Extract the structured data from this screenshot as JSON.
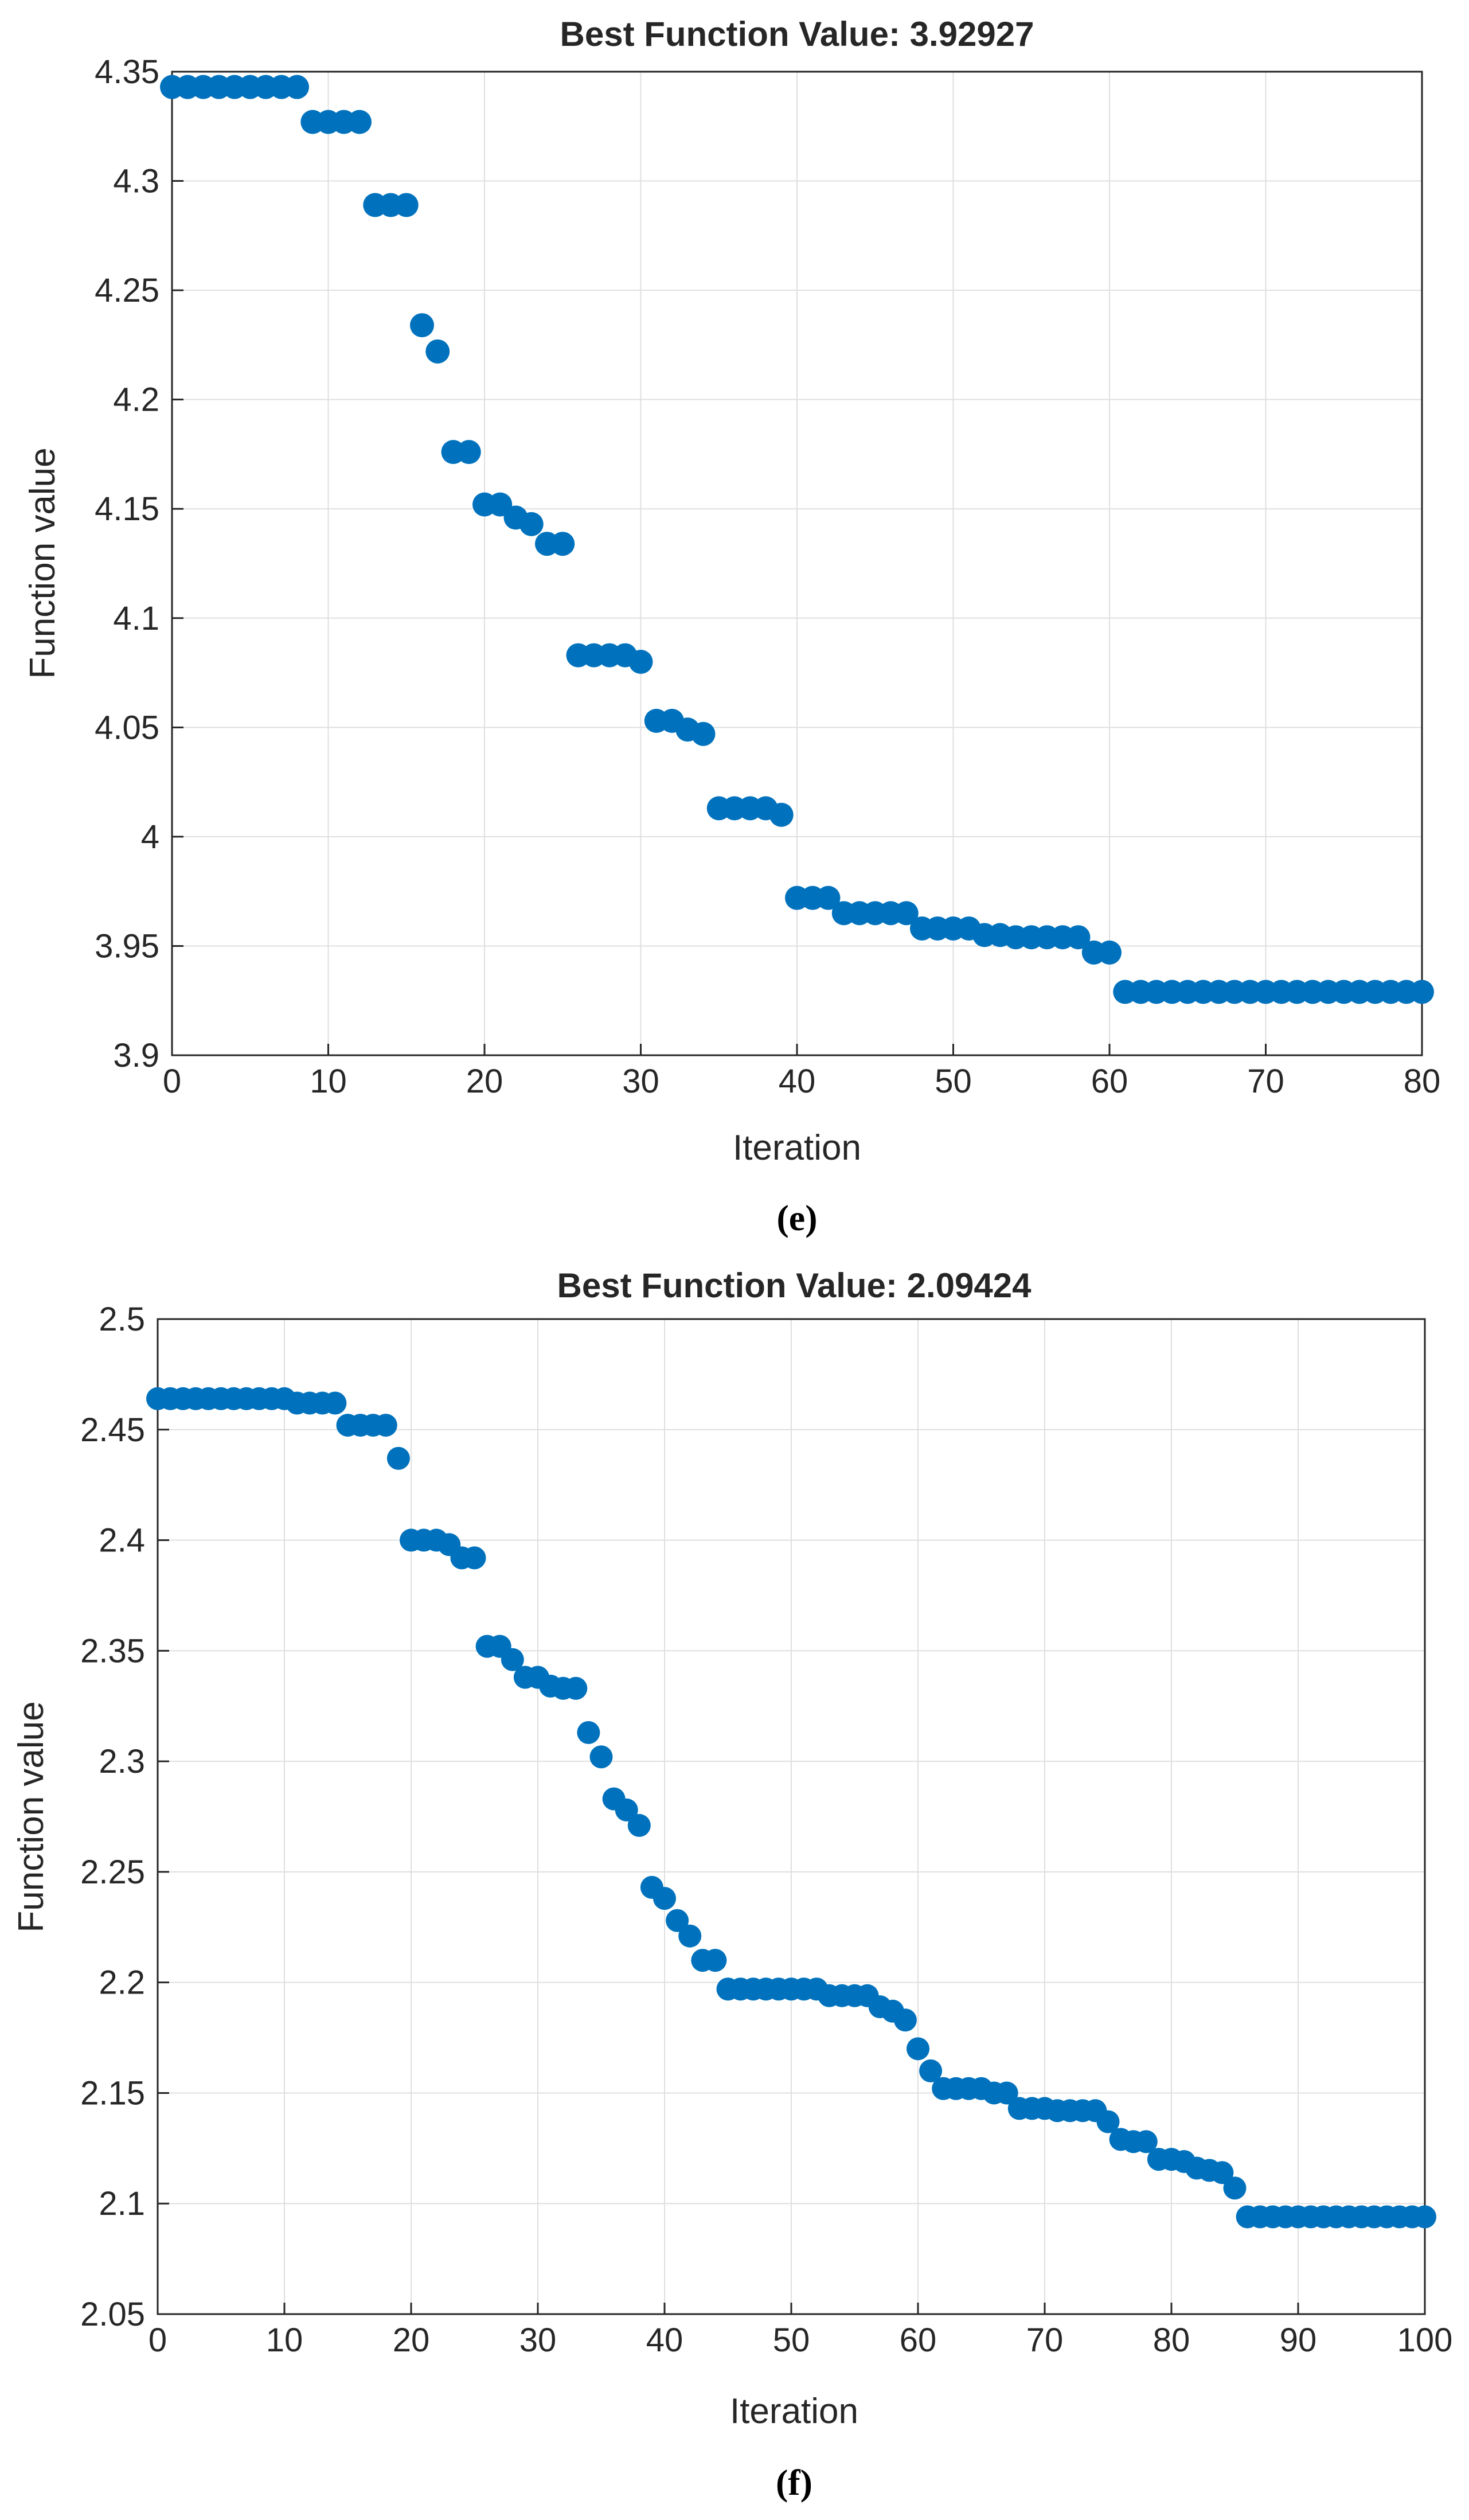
{
  "figure": {
    "panels": [
      {
        "caption": "(e)"
      },
      {
        "caption": "(f)"
      }
    ]
  },
  "colors": {
    "marker": "#0072BD",
    "grid": "#DFDFDF",
    "axis": "#262626"
  },
  "chart_data": [
    {
      "type": "scatter",
      "title": "Best Function Value: 3.92927",
      "xlabel": "Iteration",
      "ylabel": "Function value",
      "xlim": [
        0,
        80
      ],
      "ylim": [
        3.9,
        4.35
      ],
      "xticks": [
        0,
        10,
        20,
        30,
        40,
        50,
        60,
        70,
        80
      ],
      "yticks": [
        3.9,
        3.95,
        4.0,
        4.05,
        4.1,
        4.15,
        4.2,
        4.25,
        4.3,
        4.35
      ],
      "ytick_labels": [
        "3.9",
        "3.95",
        "4",
        "4.05",
        "4.1",
        "4.15",
        "4.2",
        "4.25",
        "4.3",
        "4.35"
      ],
      "grid": true,
      "x": [
        0,
        1,
        2,
        3,
        4,
        5,
        6,
        7,
        8,
        9,
        10,
        11,
        12,
        13,
        14,
        15,
        16,
        17,
        18,
        19,
        20,
        21,
        22,
        23,
        24,
        25,
        26,
        27,
        28,
        29,
        30,
        31,
        32,
        33,
        34,
        35,
        36,
        37,
        38,
        39,
        40,
        41,
        42,
        43,
        44,
        45,
        46,
        47,
        48,
        49,
        50,
        51,
        52,
        53,
        54,
        55,
        56,
        57,
        58,
        59,
        60,
        61,
        62,
        63,
        64,
        65,
        66,
        67,
        68,
        69,
        70,
        71,
        72,
        73,
        74,
        75,
        76,
        77,
        78,
        79,
        80
      ],
      "y": [
        4.343,
        4.343,
        4.343,
        4.343,
        4.343,
        4.343,
        4.343,
        4.343,
        4.343,
        4.327,
        4.327,
        4.327,
        4.327,
        4.289,
        4.289,
        4.289,
        4.234,
        4.222,
        4.176,
        4.176,
        4.152,
        4.152,
        4.146,
        4.143,
        4.134,
        4.134,
        4.083,
        4.083,
        4.083,
        4.083,
        4.08,
        4.053,
        4.053,
        4.049,
        4.047,
        4.013,
        4.013,
        4.013,
        4.013,
        4.01,
        3.972,
        3.972,
        3.972,
        3.965,
        3.965,
        3.965,
        3.965,
        3.965,
        3.958,
        3.958,
        3.958,
        3.958,
        3.955,
        3.955,
        3.954,
        3.954,
        3.954,
        3.954,
        3.954,
        3.947,
        3.947,
        3.929,
        3.929,
        3.929,
        3.929,
        3.929,
        3.929,
        3.929,
        3.929,
        3.929,
        3.929,
        3.929,
        3.929,
        3.929,
        3.929,
        3.929,
        3.929,
        3.929,
        3.929,
        3.929,
        3.929
      ]
    },
    {
      "type": "scatter",
      "title": "Best Function Value: 2.09424",
      "xlabel": "Iteration",
      "ylabel": "Function value",
      "xlim": [
        0,
        100
      ],
      "ylim": [
        2.05,
        2.5
      ],
      "xticks": [
        0,
        10,
        20,
        30,
        40,
        50,
        60,
        70,
        80,
        90,
        100
      ],
      "yticks": [
        2.05,
        2.1,
        2.15,
        2.2,
        2.25,
        2.3,
        2.35,
        2.4,
        2.45,
        2.5
      ],
      "ytick_labels": [
        "2.05",
        "2.1",
        "2.15",
        "2.2",
        "2.25",
        "2.3",
        "2.35",
        "2.4",
        "2.45",
        "2.5"
      ],
      "grid": true,
      "x": [
        0,
        1,
        2,
        3,
        4,
        5,
        6,
        7,
        8,
        9,
        10,
        11,
        12,
        13,
        14,
        15,
        16,
        17,
        18,
        19,
        20,
        21,
        22,
        23,
        24,
        25,
        26,
        27,
        28,
        29,
        30,
        31,
        32,
        33,
        34,
        35,
        36,
        37,
        38,
        39,
        40,
        41,
        42,
        43,
        44,
        45,
        46,
        47,
        48,
        49,
        50,
        51,
        52,
        53,
        54,
        55,
        56,
        57,
        58,
        59,
        60,
        61,
        62,
        63,
        64,
        65,
        66,
        67,
        68,
        69,
        70,
        71,
        72,
        73,
        74,
        75,
        76,
        77,
        78,
        79,
        80,
        81,
        82,
        83,
        84,
        85,
        86,
        87,
        88,
        89,
        90,
        91,
        92,
        93,
        94,
        95,
        96,
        97,
        98,
        99,
        100
      ],
      "y": [
        2.464,
        2.464,
        2.464,
        2.464,
        2.464,
        2.464,
        2.464,
        2.464,
        2.464,
        2.464,
        2.464,
        2.462,
        2.462,
        2.462,
        2.462,
        2.452,
        2.452,
        2.452,
        2.452,
        2.437,
        2.4,
        2.4,
        2.4,
        2.398,
        2.392,
        2.392,
        2.352,
        2.352,
        2.346,
        2.338,
        2.338,
        2.334,
        2.333,
        2.333,
        2.313,
        2.302,
        2.283,
        2.278,
        2.271,
        2.243,
        2.238,
        2.228,
        2.221,
        2.21,
        2.21,
        2.197,
        2.197,
        2.197,
        2.197,
        2.197,
        2.197,
        2.197,
        2.197,
        2.194,
        2.194,
        2.194,
        2.194,
        2.189,
        2.187,
        2.183,
        2.17,
        2.16,
        2.152,
        2.152,
        2.152,
        2.152,
        2.15,
        2.15,
        2.143,
        2.143,
        2.143,
        2.142,
        2.142,
        2.142,
        2.142,
        2.137,
        2.129,
        2.128,
        2.128,
        2.12,
        2.12,
        2.119,
        2.116,
        2.115,
        2.114,
        2.107,
        2.094,
        2.094,
        2.094,
        2.094,
        2.094,
        2.094,
        2.094,
        2.094,
        2.094,
        2.094,
        2.094,
        2.094,
        2.094,
        2.094,
        2.094
      ]
    }
  ]
}
